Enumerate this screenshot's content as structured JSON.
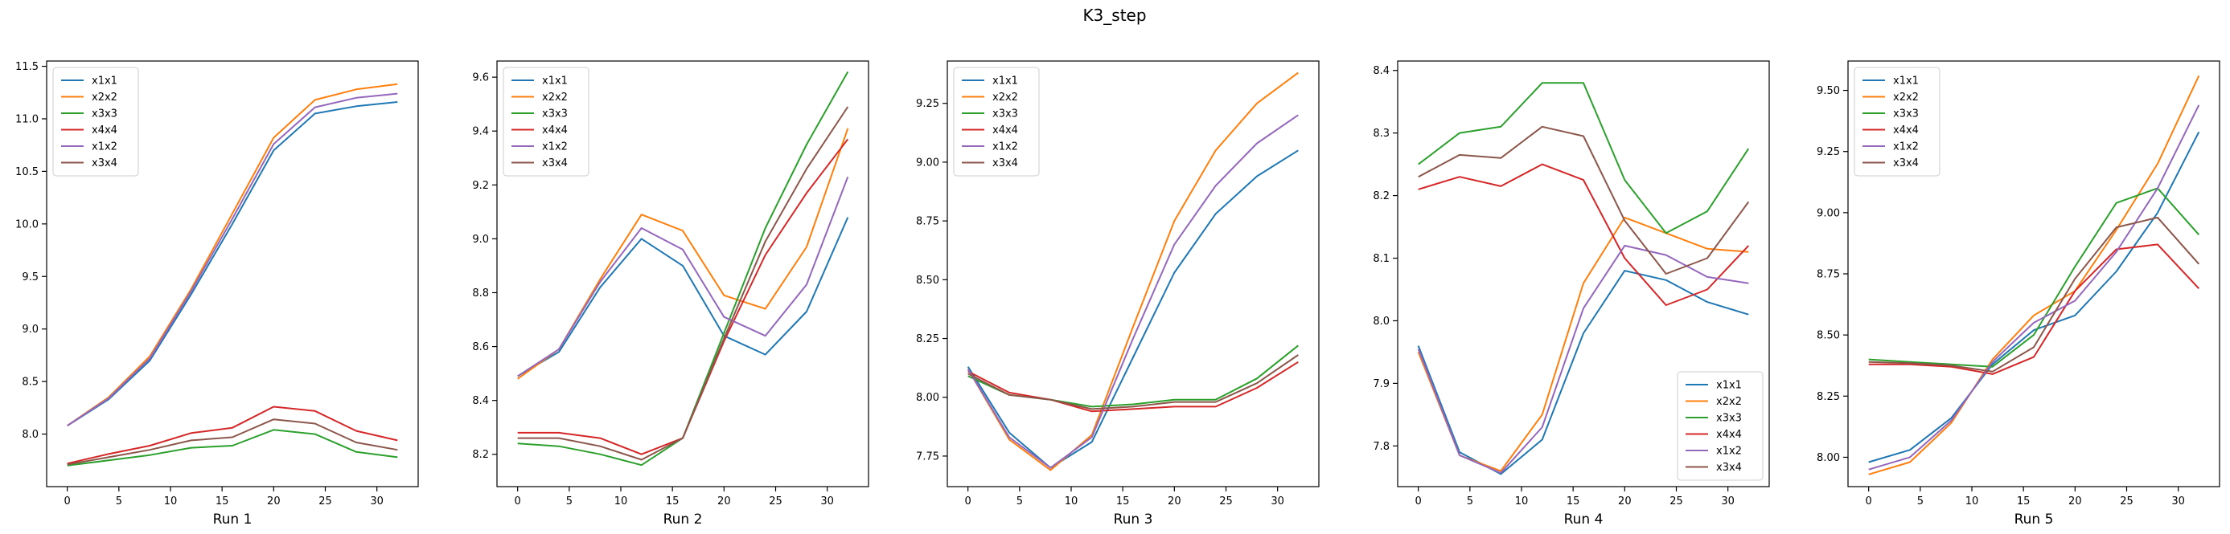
{
  "title": "K3_step",
  "chart_data": [
    {
      "type": "line",
      "xlabel": "Run 1",
      "xlim": [
        -2,
        34
      ],
      "ylim": [
        7.5,
        11.55
      ],
      "xticks": [
        0,
        5,
        10,
        15,
        20,
        25,
        30
      ],
      "yticks": [
        8.0,
        8.5,
        9.0,
        9.5,
        10.0,
        10.5,
        11.0,
        11.5
      ],
      "ytick_labels": [
        "8.0",
        "8.5",
        "9.0",
        "9.5",
        "10.0",
        "10.5",
        "11.0",
        "11.5"
      ],
      "legend": "top-left",
      "x": [
        0,
        4,
        8,
        12,
        16,
        20,
        24,
        28,
        32
      ],
      "series": [
        {
          "name": "x1x1",
          "color": "#1f77b4",
          "values": [
            8.08,
            8.33,
            8.7,
            9.33,
            10.0,
            10.7,
            11.05,
            11.12,
            11.16
          ]
        },
        {
          "name": "x2x2",
          "color": "#ff7f0e",
          "values": [
            8.08,
            8.35,
            8.74,
            9.38,
            10.1,
            10.82,
            11.18,
            11.28,
            11.33
          ]
        },
        {
          "name": "x3x3",
          "color": "#2ca02c",
          "values": [
            7.7,
            7.75,
            7.8,
            7.87,
            7.89,
            8.04,
            8.0,
            7.83,
            7.78
          ]
        },
        {
          "name": "x4x4",
          "color": "#d62728",
          "values": [
            7.72,
            7.81,
            7.89,
            8.01,
            8.06,
            8.26,
            8.22,
            8.03,
            7.94
          ]
        },
        {
          "name": "x1x2",
          "color": "#9467bd",
          "values": [
            8.08,
            8.34,
            8.72,
            9.36,
            10.05,
            10.76,
            11.11,
            11.2,
            11.24
          ]
        },
        {
          "name": "x3x4",
          "color": "#8c564b",
          "values": [
            7.71,
            7.78,
            7.85,
            7.94,
            7.97,
            8.14,
            8.1,
            7.92,
            7.85
          ]
        }
      ]
    },
    {
      "type": "line",
      "xlabel": "Run 2",
      "xlim": [
        -2,
        34
      ],
      "ylim": [
        8.08,
        9.66
      ],
      "xticks": [
        0,
        5,
        10,
        15,
        20,
        25,
        30
      ],
      "yticks": [
        8.2,
        8.4,
        8.6,
        8.8,
        9.0,
        9.2,
        9.4,
        9.6
      ],
      "ytick_labels": [
        "8.2",
        "8.4",
        "8.6",
        "8.8",
        "9.0",
        "9.2",
        "9.4",
        "9.6"
      ],
      "legend": "top-left",
      "x": [
        0,
        4,
        8,
        12,
        16,
        20,
        24,
        28,
        32
      ],
      "series": [
        {
          "name": "x1x1",
          "color": "#1f77b4",
          "values": [
            8.49,
            8.58,
            8.82,
            9.0,
            8.9,
            8.64,
            8.57,
            8.73,
            9.08
          ]
        },
        {
          "name": "x2x2",
          "color": "#ff7f0e",
          "values": [
            8.48,
            8.59,
            8.85,
            9.09,
            9.03,
            8.79,
            8.74,
            8.97,
            9.41
          ]
        },
        {
          "name": "x3x3",
          "color": "#2ca02c",
          "values": [
            8.24,
            8.23,
            8.2,
            8.16,
            8.26,
            8.65,
            9.04,
            9.35,
            9.62
          ]
        },
        {
          "name": "x4x4",
          "color": "#d62728",
          "values": [
            8.28,
            8.28,
            8.26,
            8.2,
            8.26,
            8.62,
            8.94,
            9.17,
            9.37
          ]
        },
        {
          "name": "x1x2",
          "color": "#9467bd",
          "values": [
            8.49,
            8.59,
            8.84,
            9.04,
            8.96,
            8.71,
            8.64,
            8.83,
            9.23
          ]
        },
        {
          "name": "x3x4",
          "color": "#8c564b",
          "values": [
            8.26,
            8.26,
            8.23,
            8.18,
            8.26,
            8.63,
            8.99,
            9.26,
            9.49
          ]
        }
      ]
    },
    {
      "type": "line",
      "xlabel": "Run 3",
      "xlim": [
        -2,
        34
      ],
      "ylim": [
        7.62,
        9.43
      ],
      "xticks": [
        0,
        5,
        10,
        15,
        20,
        25,
        30
      ],
      "yticks": [
        7.75,
        8.0,
        8.25,
        8.5,
        8.75,
        9.0,
        9.25
      ],
      "ytick_labels": [
        "7.75",
        "8.00",
        "8.25",
        "8.50",
        "8.75",
        "9.00",
        "9.25"
      ],
      "legend": "top-left",
      "x": [
        0,
        4,
        8,
        12,
        16,
        20,
        24,
        28,
        32
      ],
      "series": [
        {
          "name": "x1x1",
          "color": "#1f77b4",
          "values": [
            8.13,
            7.85,
            7.7,
            7.81,
            8.17,
            8.53,
            8.78,
            8.94,
            9.05
          ]
        },
        {
          "name": "x2x2",
          "color": "#ff7f0e",
          "values": [
            8.12,
            7.82,
            7.69,
            7.84,
            8.3,
            8.75,
            9.05,
            9.25,
            9.38
          ]
        },
        {
          "name": "x3x3",
          "color": "#2ca02c",
          "values": [
            8.09,
            8.01,
            7.99,
            7.96,
            7.97,
            7.99,
            7.99,
            8.08,
            8.22
          ]
        },
        {
          "name": "x4x4",
          "color": "#d62728",
          "values": [
            8.11,
            8.02,
            7.99,
            7.94,
            7.95,
            7.96,
            7.96,
            8.04,
            8.15
          ]
        },
        {
          "name": "x1x2",
          "color": "#9467bd",
          "values": [
            8.12,
            7.83,
            7.7,
            7.83,
            8.25,
            8.65,
            8.9,
            9.08,
            9.2
          ]
        },
        {
          "name": "x3x4",
          "color": "#8c564b",
          "values": [
            8.1,
            8.01,
            7.99,
            7.95,
            7.96,
            7.98,
            7.98,
            8.06,
            8.18
          ]
        }
      ]
    },
    {
      "type": "line",
      "xlabel": "Run 4",
      "xlim": [
        -2,
        34
      ],
      "ylim": [
        7.735,
        8.415
      ],
      "xticks": [
        0,
        5,
        10,
        15,
        20,
        25,
        30
      ],
      "yticks": [
        7.8,
        7.9,
        8.0,
        8.1,
        8.2,
        8.3,
        8.4
      ],
      "ytick_labels": [
        "7.8",
        "7.9",
        "8.0",
        "8.1",
        "8.2",
        "8.3",
        "8.4"
      ],
      "legend": "bottom-right",
      "x": [
        0,
        4,
        8,
        12,
        16,
        20,
        24,
        28,
        32
      ],
      "series": [
        {
          "name": "x1x1",
          "color": "#1f77b4",
          "values": [
            7.96,
            7.79,
            7.755,
            7.81,
            7.98,
            8.08,
            8.065,
            8.03,
            8.01
          ]
        },
        {
          "name": "x2x2",
          "color": "#ff7f0e",
          "values": [
            7.95,
            7.785,
            7.76,
            7.85,
            8.06,
            8.165,
            8.14,
            8.115,
            8.11
          ]
        },
        {
          "name": "x3x3",
          "color": "#2ca02c",
          "values": [
            8.25,
            8.3,
            8.31,
            8.38,
            8.38,
            8.225,
            8.14,
            8.175,
            8.275
          ]
        },
        {
          "name": "x4x4",
          "color": "#d62728",
          "values": [
            8.21,
            8.23,
            8.215,
            8.25,
            8.225,
            8.1,
            8.025,
            8.05,
            8.12
          ]
        },
        {
          "name": "x1x2",
          "color": "#9467bd",
          "values": [
            7.955,
            7.785,
            7.757,
            7.83,
            8.02,
            8.12,
            8.105,
            8.07,
            8.06
          ]
        },
        {
          "name": "x3x4",
          "color": "#8c564b",
          "values": [
            8.23,
            8.265,
            8.26,
            8.31,
            8.295,
            8.16,
            8.075,
            8.1,
            8.19
          ]
        }
      ]
    },
    {
      "type": "line",
      "xlabel": "Run 5",
      "xlim": [
        -2,
        34
      ],
      "ylim": [
        7.88,
        9.62
      ],
      "xticks": [
        0,
        5,
        10,
        15,
        20,
        25,
        30
      ],
      "yticks": [
        8.0,
        8.25,
        8.5,
        8.75,
        9.0,
        9.25,
        9.5
      ],
      "ytick_labels": [
        "8.00",
        "8.25",
        "8.50",
        "8.75",
        "9.00",
        "9.25",
        "9.50"
      ],
      "legend": "top-left",
      "x": [
        0,
        4,
        8,
        12,
        16,
        20,
        24,
        28,
        32
      ],
      "series": [
        {
          "name": "x1x1",
          "color": "#1f77b4",
          "values": [
            7.98,
            8.03,
            8.16,
            8.38,
            8.52,
            8.58,
            8.76,
            9.0,
            9.33
          ]
        },
        {
          "name": "x2x2",
          "color": "#ff7f0e",
          "values": [
            7.93,
            7.98,
            8.14,
            8.4,
            8.58,
            8.68,
            8.93,
            9.2,
            9.56
          ]
        },
        {
          "name": "x3x3",
          "color": "#2ca02c",
          "values": [
            8.4,
            8.39,
            8.38,
            8.37,
            8.5,
            8.78,
            9.04,
            9.1,
            8.91
          ]
        },
        {
          "name": "x4x4",
          "color": "#d62728",
          "values": [
            8.38,
            8.38,
            8.37,
            8.34,
            8.41,
            8.68,
            8.85,
            8.87,
            8.69
          ]
        },
        {
          "name": "x1x2",
          "color": "#9467bd",
          "values": [
            7.95,
            8.0,
            8.15,
            8.39,
            8.55,
            8.64,
            8.84,
            9.1,
            9.44
          ]
        },
        {
          "name": "x3x4",
          "color": "#8c564b",
          "values": [
            8.39,
            8.385,
            8.375,
            8.35,
            8.45,
            8.73,
            8.94,
            8.98,
            8.79
          ]
        }
      ]
    }
  ]
}
